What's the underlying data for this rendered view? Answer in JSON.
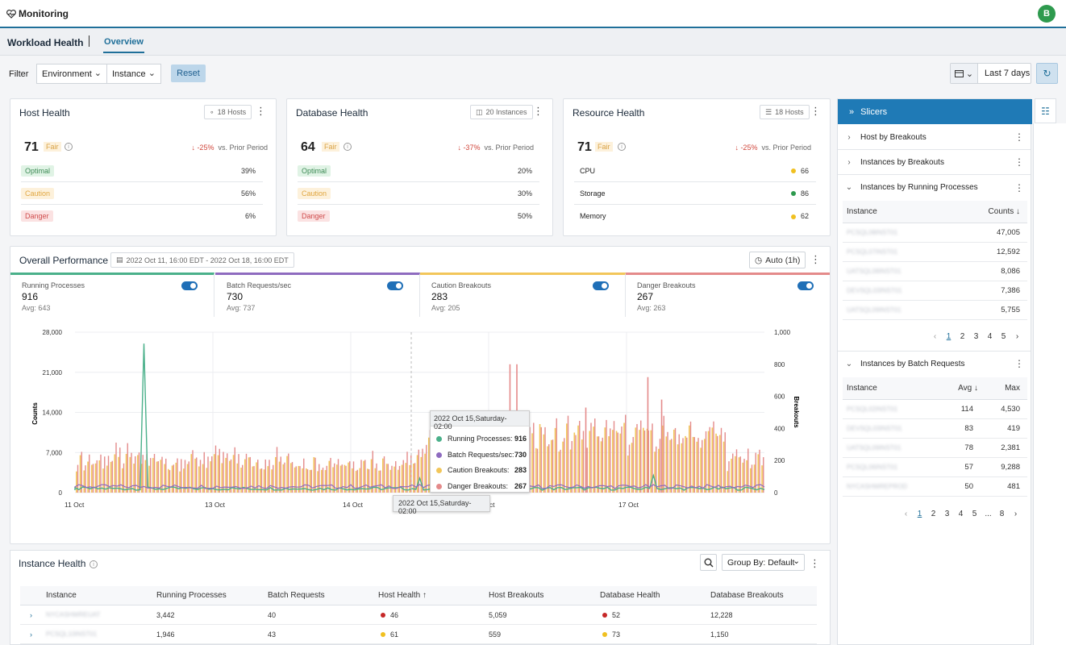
{
  "app": {
    "title": "Monitoring",
    "user_initial": "B"
  },
  "subnav": {
    "section": "Workload Health",
    "tab": "Overview"
  },
  "filter": {
    "label": "Filter",
    "environment": "Environment",
    "instance": "Instance",
    "reset": "Reset",
    "range": "Last 7 days"
  },
  "host_health": {
    "title": "Host Health",
    "chip": "18 Hosts",
    "score": "71",
    "status": "Fair",
    "delta": "↓ -25%",
    "delta_suffix": "vs. Prior Period",
    "rows": [
      {
        "label": "Optimal",
        "value": "39%"
      },
      {
        "label": "Caution",
        "value": "56%"
      },
      {
        "label": "Danger",
        "value": "6%"
      }
    ]
  },
  "database_health": {
    "title": "Database Health",
    "chip": "20 Instances",
    "score": "64",
    "status": "Fair",
    "delta": "↓ -37%",
    "delta_suffix": "vs. Prior Period",
    "rows": [
      {
        "label": "Optimal",
        "value": "20%"
      },
      {
        "label": "Caution",
        "value": "30%"
      },
      {
        "label": "Danger",
        "value": "50%"
      }
    ]
  },
  "resource_health": {
    "title": "Resource Health",
    "chip": "18 Hosts",
    "score": "71",
    "status": "Fair",
    "delta": "↓ -25%",
    "delta_suffix": "vs. Prior Period",
    "rows": [
      {
        "label": "CPU",
        "value": "66",
        "color": "#f0c020"
      },
      {
        "label": "Storage",
        "value": "86",
        "color": "#2e9a4e"
      },
      {
        "label": "Memory",
        "value": "62",
        "color": "#f0c020"
      }
    ]
  },
  "performance": {
    "title": "Overall Performance",
    "date_range": "2022 Oct 11, 16:00 EDT - 2022 Oct 18, 16:00 EDT",
    "auto": "Auto (1h)",
    "kpis": [
      {
        "name": "Running Processes",
        "value": "916",
        "avg": "Avg: 643",
        "color": "#4ab08a"
      },
      {
        "name": "Batch Requests/sec",
        "value": "730",
        "avg": "Avg: 737",
        "color": "#8e6bbf"
      },
      {
        "name": "Caution Breakouts",
        "value": "283",
        "avg": "Avg: 205",
        "color": "#f2c65a"
      },
      {
        "name": "Danger Breakouts",
        "value": "267",
        "avg": "Avg: 263",
        "color": "#e48a8a"
      }
    ],
    "tooltip": {
      "title": "2022 Oct 15,Saturday- 02:00",
      "items": [
        {
          "label": "Running Processes:",
          "value": "916",
          "color": "#4ab08a"
        },
        {
          "label": "Batch Requests/sec:",
          "value": "730",
          "color": "#8e6bbf"
        },
        {
          "label": "Caution Breakouts:",
          "value": "283",
          "color": "#f2c65a"
        },
        {
          "label": "Danger Breakouts:",
          "value": "267",
          "color": "#e48a8a"
        }
      ]
    },
    "crosshair_label": "2022 Oct 15,Saturday- 02:00"
  },
  "chart_data": {
    "type": "bar",
    "ylabel": "Counts",
    "y2label": "Breakouts",
    "ylim": [
      0,
      28000
    ],
    "y2lim": [
      0,
      1000
    ],
    "y_ticks": [
      "28,000",
      "21,000",
      "14,000",
      "7,000",
      "0"
    ],
    "y2_ticks": [
      "1,000",
      "800",
      "600",
      "400",
      "200",
      "0"
    ],
    "x_ticks": [
      "11 Oct",
      "13 Oct",
      "14 Oct",
      "Oct",
      "17 Oct"
    ],
    "grid": true,
    "series": [
      {
        "name": "Running Processes",
        "color": "#4ab08a",
        "peaks": [
          {
            "x": 0.1,
            "y": 26000
          },
          {
            "x": 0.5,
            "y": 2500
          },
          {
            "x": 0.84,
            "y": 3000
          }
        ]
      },
      {
        "name": "Batch Requests/sec",
        "color": "#8e6bbf"
      },
      {
        "name": "Caution Breakouts",
        "color": "#f2c65a"
      },
      {
        "name": "Danger Breakouts",
        "color": "#e48a8a"
      }
    ]
  },
  "slicers": {
    "title": "Slicers",
    "sections": [
      "Host by Breakouts",
      "Instances by Breakouts",
      "Instances by Running Processes",
      "Instances by Batch Requests"
    ],
    "running": {
      "col1": "Instance",
      "col2": "Counts ↓",
      "rows": [
        {
          "name": "PCSQL08INST01",
          "v": "47,005"
        },
        {
          "name": "PCSQL07INST01",
          "v": "12,592"
        },
        {
          "name": "UATSQL08INST01",
          "v": "8,086"
        },
        {
          "name": "DEVSQL03INST01",
          "v": "7,386"
        },
        {
          "name": "UATSQL09INST01",
          "v": "5,755"
        }
      ],
      "pages": [
        "1",
        "2",
        "3",
        "4",
        "5"
      ]
    },
    "batch": {
      "col1": "Instance",
      "col2": "Avg ↓",
      "col3": "Max",
      "rows": [
        {
          "name": "PCSQL02INST01",
          "a": "114",
          "m": "4,530"
        },
        {
          "name": "DEVSQL03INST01",
          "a": "83",
          "m": "419"
        },
        {
          "name": "UATSQL09INST01",
          "a": "78",
          "m": "2,381"
        },
        {
          "name": "PCSQL06INST01",
          "a": "57",
          "m": "9,288"
        },
        {
          "name": "NYCASHWREPROD",
          "a": "50",
          "m": "481"
        }
      ],
      "pages": [
        "1",
        "2",
        "3",
        "4",
        "5",
        "...",
        "8"
      ]
    }
  },
  "instance_health": {
    "title": "Instance Health",
    "group_by": "Group By: Default",
    "columns": [
      "Instance",
      "Running Processes",
      "Batch Requests",
      "Host Health ↑",
      "Host Breakouts",
      "Database Health",
      "Database Breakouts"
    ],
    "rows": [
      {
        "instance": "NYCASHWREUAT",
        "running": "3,442",
        "batch": "40",
        "host": "46",
        "host_color": "#c62828",
        "hb": "5,059",
        "db": "52",
        "db_color": "#c62828",
        "dbb": "12,228"
      },
      {
        "instance": "PCSQL10INST01",
        "running": "1,946",
        "batch": "43",
        "host": "61",
        "host_color": "#f0c020",
        "hb": "559",
        "db": "73",
        "db_color": "#f0c020",
        "dbb": "1,150"
      }
    ]
  }
}
